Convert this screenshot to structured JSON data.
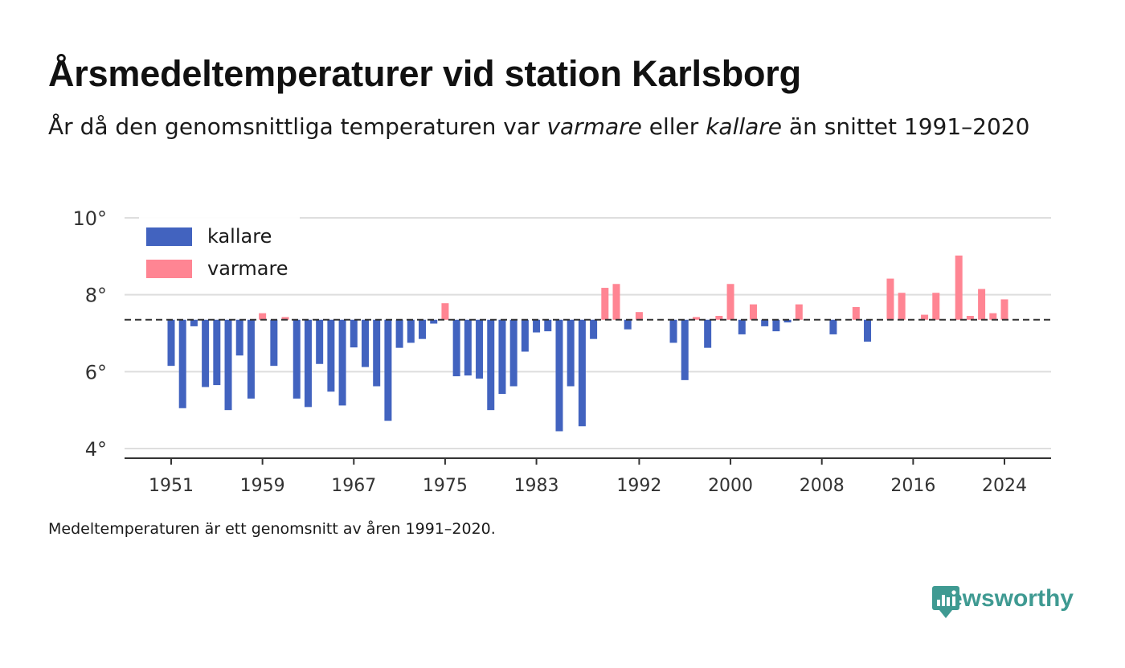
{
  "header": {
    "title": "Årsmedeltemperaturer vid station Karlsborg",
    "subtitle_part1": "År då den genomsnittliga temperaturen var ",
    "subtitle_varmare": "varmare",
    "subtitle_part2": " eller ",
    "subtitle_kallare": "kallare",
    "subtitle_part3": " än snittet 1991–2020"
  },
  "footer": {
    "note": "Medeltemperaturen är ett genomsnitt av åren 1991–2020.",
    "brand": "Newsworthy"
  },
  "colors": {
    "kallare": "#4263bf",
    "varmare": "#ff8593",
    "reference_line": "#333333",
    "grid": "#dedede",
    "brand": "#3f9a92"
  },
  "chart_data": {
    "type": "bar",
    "reference_value": 7.35,
    "reference_line_style": "dashed",
    "ylim": [
      3.8,
      10.1
    ],
    "yticks": [
      4,
      6,
      8,
      10
    ],
    "ytick_labels": [
      "4°",
      "6°",
      "8°",
      "10°"
    ],
    "xticks": [
      1951,
      1959,
      1967,
      1975,
      1983,
      1992,
      2000,
      2008,
      2016,
      2024
    ],
    "xtick_labels": [
      "1951",
      "1959",
      "1967",
      "1975",
      "1983",
      "1992",
      "2000",
      "2008",
      "2016",
      "2024"
    ],
    "grid": true,
    "legend_placement": "top-left",
    "legend": [
      {
        "key": "kallare",
        "label": "kallare"
      },
      {
        "key": "varmare",
        "label": "varmare"
      }
    ],
    "years": [
      1951,
      1952,
      1953,
      1954,
      1955,
      1956,
      1957,
      1958,
      1959,
      1960,
      1961,
      1962,
      1963,
      1964,
      1965,
      1966,
      1967,
      1968,
      1969,
      1970,
      1971,
      1972,
      1973,
      1974,
      1975,
      1976,
      1977,
      1978,
      1979,
      1980,
      1981,
      1982,
      1983,
      1984,
      1985,
      1986,
      1987,
      1988,
      1989,
      1990,
      1991,
      1992,
      1993,
      1994,
      1995,
      1996,
      1997,
      1998,
      1999,
      2000,
      2001,
      2002,
      2003,
      2004,
      2005,
      2006,
      2007,
      2008,
      2009,
      2010,
      2011,
      2012,
      2013,
      2014,
      2015,
      2016,
      2017,
      2018,
      2019,
      2020,
      2021,
      2022,
      2023,
      2024
    ],
    "values": [
      6.15,
      5.05,
      7.18,
      5.6,
      5.65,
      5.0,
      6.42,
      5.3,
      7.52,
      6.15,
      7.42,
      5.3,
      5.08,
      6.2,
      5.48,
      5.12,
      6.63,
      6.12,
      5.62,
      4.72,
      6.62,
      6.75,
      6.85,
      7.25,
      7.78,
      5.88,
      5.9,
      5.82,
      5.0,
      5.42,
      5.62,
      6.52,
      7.02,
      7.05,
      4.45,
      5.62,
      4.58,
      6.85,
      8.18,
      8.28,
      7.1,
      7.55,
      7.35,
      7.35,
      6.75,
      5.78,
      7.42,
      6.62,
      7.45,
      8.28,
      6.97,
      7.75,
      7.18,
      7.05,
      7.28,
      7.75,
      7.35,
      7.35,
      6.97,
      7.35,
      7.68,
      6.78,
      7.35,
      8.42,
      8.05,
      7.35,
      7.48,
      8.05,
      7.35,
      9.02,
      7.45,
      8.15,
      7.52,
      7.88
    ]
  }
}
